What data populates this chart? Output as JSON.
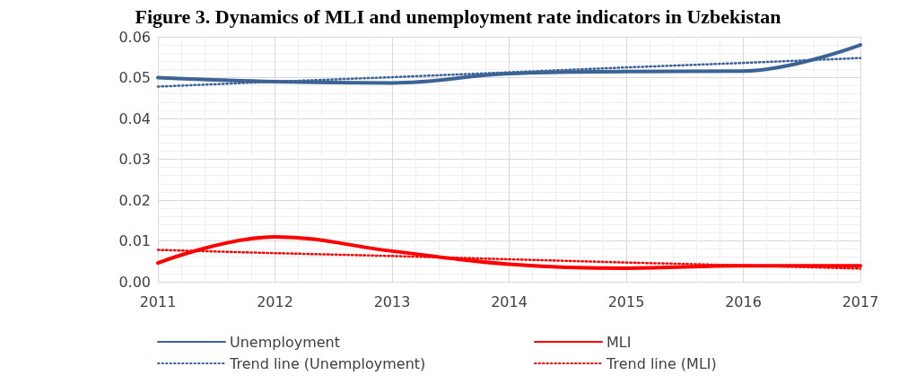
{
  "chart_data": {
    "type": "line",
    "title": "Figure 3. Dynamics of MLI and unemployment rate indicators in Uzbekistan",
    "x": [
      2011,
      2012,
      2013,
      2014,
      2015,
      2016,
      2017
    ],
    "series": [
      {
        "name": "Unemployment",
        "color": "#3b6396",
        "values": [
          0.05,
          0.049,
          0.0487,
          0.051,
          0.0515,
          0.0516,
          0.058
        ]
      },
      {
        "name": "MLI",
        "color": "#ff0000",
        "values": [
          0.0046,
          0.011,
          0.0075,
          0.0043,
          0.0033,
          0.0039,
          0.0039
        ]
      },
      {
        "name": "Trend line (Unemployment)",
        "color": "#3b6396",
        "line_style": "dotted",
        "values": [
          0.0478,
          0.049,
          0.0501,
          0.0513,
          0.0525,
          0.0536,
          0.0548
        ]
      },
      {
        "name": "Trend line (MLI)",
        "color": "#ff0000",
        "line_style": "dotted",
        "values": [
          0.0078,
          0.007,
          0.0063,
          0.0055,
          0.0047,
          0.004,
          0.0032
        ]
      }
    ],
    "xlim": [
      2011,
      2017
    ],
    "xticks": [
      2011,
      2012,
      2013,
      2014,
      2015,
      2016,
      2017
    ],
    "ylim": [
      0,
      0.06
    ],
    "yticks": [
      {
        "value": 0,
        "label": "0.00"
      },
      {
        "value": 0.01,
        "label": "0.01"
      },
      {
        "value": 0.02,
        "label": "0.02"
      },
      {
        "value": 0.03,
        "label": "0.03"
      },
      {
        "value": 0.04,
        "label": "0.04"
      },
      {
        "value": 0.05,
        "label": "0.05"
      },
      {
        "value": 0.06,
        "label": "0.06"
      }
    ],
    "grid": true,
    "legend": "bottom",
    "marker": "none",
    "line_style": "solid"
  }
}
